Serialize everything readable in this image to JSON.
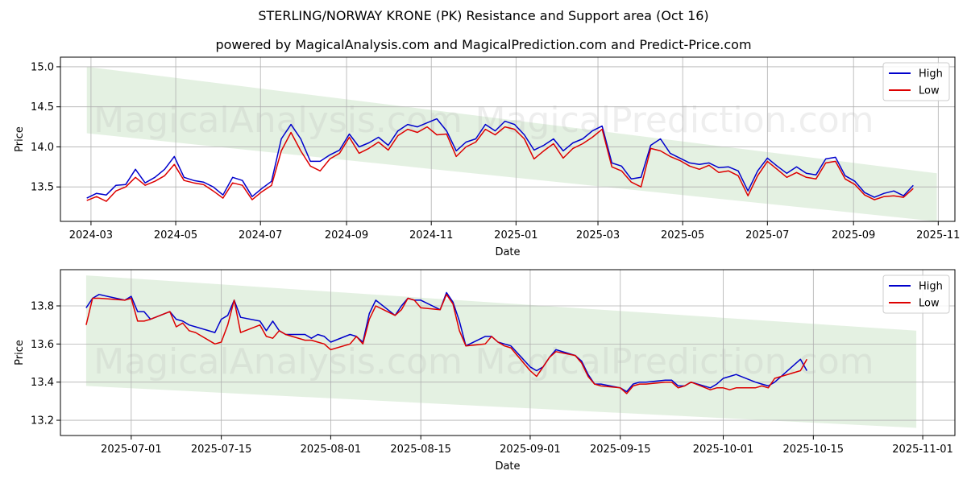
{
  "title": "STERLING/NORWAY KRONE (PK) Resistance and Support area (Oct 16)",
  "subtitle": "powered by MagicalAnalysis.com and MagicalPrediction.com and Predict-Price.com",
  "watermarks": [
    "MagicalAnalysis.com",
    "MagicalPrediction.com"
  ],
  "colors": {
    "high": "#0000cc",
    "low": "#dd0000",
    "band": "#d6ead2",
    "grid": "#b0b0b0"
  },
  "chart_data": [
    {
      "type": "line",
      "xlabel": "Date",
      "ylabel": "Price",
      "grid": true,
      "legend_position": "top-right",
      "x_ticks": [
        "2024-03",
        "2024-05",
        "2024-07",
        "2024-09",
        "2024-11",
        "2025-01",
        "2025-03",
        "2025-05",
        "2025-07",
        "2025-09",
        "2025-11"
      ],
      "y_ticks": [
        "13.5",
        "14.0",
        "14.5",
        "15.0"
      ],
      "xlim": [
        "2024-02-08",
        "2025-11-13"
      ],
      "ylim": [
        13.07,
        15.12
      ],
      "band": {
        "x": [
          "2024-02-27",
          "2025-10-31"
        ],
        "upper": [
          15.0,
          13.67
        ],
        "lower": [
          14.17,
          13.07
        ]
      },
      "series": [
        {
          "name": "High",
          "x": [
            "2024-02-27",
            "2024-03-05",
            "2024-03-12",
            "2024-03-19",
            "2024-03-26",
            "2024-04-02",
            "2024-04-09",
            "2024-04-16",
            "2024-04-23",
            "2024-04-30",
            "2024-05-07",
            "2024-05-14",
            "2024-05-21",
            "2024-05-28",
            "2024-06-04",
            "2024-06-11",
            "2024-06-18",
            "2024-06-25",
            "2024-07-02",
            "2024-07-09",
            "2024-07-16",
            "2024-07-23",
            "2024-07-30",
            "2024-08-06",
            "2024-08-13",
            "2024-08-20",
            "2024-08-27",
            "2024-09-03",
            "2024-09-10",
            "2024-09-17",
            "2024-09-24",
            "2024-10-01",
            "2024-10-08",
            "2024-10-15",
            "2024-10-22",
            "2024-10-29",
            "2024-11-05",
            "2024-11-12",
            "2024-11-19",
            "2024-11-26",
            "2024-12-03",
            "2024-12-10",
            "2024-12-17",
            "2024-12-24",
            "2024-12-31",
            "2025-01-07",
            "2025-01-14",
            "2025-01-21",
            "2025-01-28",
            "2025-02-04",
            "2025-02-11",
            "2025-02-18",
            "2025-02-25",
            "2025-03-04",
            "2025-03-11",
            "2025-03-18",
            "2025-03-25",
            "2025-04-01",
            "2025-04-08",
            "2025-04-15",
            "2025-04-22",
            "2025-04-29",
            "2025-05-06",
            "2025-05-13",
            "2025-05-20",
            "2025-05-27",
            "2025-06-03",
            "2025-06-10",
            "2025-06-17",
            "2025-06-24",
            "2025-07-01",
            "2025-07-08",
            "2025-07-15",
            "2025-07-22",
            "2025-07-29",
            "2025-08-05",
            "2025-08-12",
            "2025-08-19",
            "2025-08-26",
            "2025-09-02",
            "2025-09-09",
            "2025-09-16",
            "2025-09-23",
            "2025-09-30",
            "2025-10-07",
            "2025-10-14"
          ],
          "values": [
            13.36,
            13.42,
            13.4,
            13.52,
            13.53,
            13.72,
            13.55,
            13.62,
            13.72,
            13.88,
            13.62,
            13.58,
            13.56,
            13.5,
            13.4,
            13.62,
            13.58,
            13.38,
            13.48,
            13.57,
            14.1,
            14.28,
            14.1,
            13.82,
            13.82,
            13.9,
            13.96,
            14.16,
            14.0,
            14.05,
            14.12,
            14.02,
            14.2,
            14.28,
            14.25,
            14.3,
            14.35,
            14.2,
            13.95,
            14.06,
            14.1,
            14.28,
            14.2,
            14.32,
            14.28,
            14.15,
            13.96,
            14.02,
            14.1,
            13.95,
            14.05,
            14.1,
            14.2,
            14.26,
            13.8,
            13.76,
            13.6,
            13.62,
            14.02,
            14.1,
            13.92,
            13.86,
            13.8,
            13.78,
            13.8,
            13.74,
            13.75,
            13.7,
            13.45,
            13.7,
            13.86,
            13.76,
            13.67,
            13.75,
            13.67,
            13.65,
            13.85,
            13.87,
            13.64,
            13.57,
            13.43,
            13.37,
            13.42,
            13.45,
            13.39,
            13.52
          ]
        },
        {
          "name": "Low",
          "x": [
            "2024-02-27",
            "2024-03-05",
            "2024-03-12",
            "2024-03-19",
            "2024-03-26",
            "2024-04-02",
            "2024-04-09",
            "2024-04-16",
            "2024-04-23",
            "2024-04-30",
            "2024-05-07",
            "2024-05-14",
            "2024-05-21",
            "2024-05-28",
            "2024-06-04",
            "2024-06-11",
            "2024-06-18",
            "2024-06-25",
            "2024-07-02",
            "2024-07-09",
            "2024-07-16",
            "2024-07-23",
            "2024-07-30",
            "2024-08-06",
            "2024-08-13",
            "2024-08-20",
            "2024-08-27",
            "2024-09-03",
            "2024-09-10",
            "2024-09-17",
            "2024-09-24",
            "2024-10-01",
            "2024-10-08",
            "2024-10-15",
            "2024-10-22",
            "2024-10-29",
            "2024-11-05",
            "2024-11-12",
            "2024-11-19",
            "2024-11-26",
            "2024-12-03",
            "2024-12-10",
            "2024-12-17",
            "2024-12-24",
            "2024-12-31",
            "2025-01-07",
            "2025-01-14",
            "2025-01-21",
            "2025-01-28",
            "2025-02-04",
            "2025-02-11",
            "2025-02-18",
            "2025-02-25",
            "2025-03-04",
            "2025-03-11",
            "2025-03-18",
            "2025-03-25",
            "2025-04-01",
            "2025-04-08",
            "2025-04-15",
            "2025-04-22",
            "2025-04-29",
            "2025-05-06",
            "2025-05-13",
            "2025-05-20",
            "2025-05-27",
            "2025-06-03",
            "2025-06-10",
            "2025-06-17",
            "2025-06-24",
            "2025-07-01",
            "2025-07-08",
            "2025-07-15",
            "2025-07-22",
            "2025-07-29",
            "2025-08-05",
            "2025-08-12",
            "2025-08-19",
            "2025-08-26",
            "2025-09-02",
            "2025-09-09",
            "2025-09-16",
            "2025-09-23",
            "2025-09-30",
            "2025-10-07",
            "2025-10-14"
          ],
          "values": [
            13.33,
            13.38,
            13.32,
            13.45,
            13.5,
            13.62,
            13.52,
            13.57,
            13.64,
            13.78,
            13.58,
            13.55,
            13.53,
            13.45,
            13.36,
            13.55,
            13.52,
            13.34,
            13.44,
            13.52,
            13.95,
            14.18,
            13.95,
            13.76,
            13.7,
            13.85,
            13.92,
            14.12,
            13.92,
            13.98,
            14.06,
            13.96,
            14.14,
            14.22,
            14.18,
            14.25,
            14.15,
            14.16,
            13.88,
            14.0,
            14.06,
            14.22,
            14.15,
            14.25,
            14.22,
            14.1,
            13.85,
            13.95,
            14.04,
            13.86,
            13.98,
            14.04,
            14.12,
            14.22,
            13.75,
            13.7,
            13.56,
            13.5,
            13.98,
            13.95,
            13.88,
            13.83,
            13.76,
            13.72,
            13.77,
            13.68,
            13.7,
            13.64,
            13.39,
            13.64,
            13.82,
            13.72,
            13.62,
            13.68,
            13.62,
            13.6,
            13.8,
            13.82,
            13.6,
            13.53,
            13.4,
            13.34,
            13.38,
            13.39,
            13.37,
            13.48
          ]
        }
      ]
    },
    {
      "type": "line",
      "xlabel": "Date",
      "ylabel": "Price",
      "grid": true,
      "legend_position": "top-right",
      "x_ticks": [
        "2025-07-01",
        "2025-07-15",
        "2025-08-01",
        "2025-08-15",
        "2025-09-01",
        "2025-09-15",
        "2025-10-01",
        "2025-10-15",
        "2025-11-01"
      ],
      "y_ticks": [
        "13.2",
        "13.4",
        "13.6",
        "13.8"
      ],
      "xlim": [
        "2025-06-20",
        "2025-11-06"
      ],
      "ylim": [
        13.12,
        13.99
      ],
      "band": {
        "x": [
          "2025-06-24",
          "2025-10-31"
        ],
        "upper": [
          13.96,
          13.67
        ],
        "lower": [
          13.38,
          13.16
        ]
      },
      "series": [
        {
          "name": "High",
          "x": [
            "2025-06-24",
            "2025-06-25",
            "2025-06-26",
            "2025-06-30",
            "2025-07-01",
            "2025-07-02",
            "2025-07-03",
            "2025-07-04",
            "2025-07-07",
            "2025-07-08",
            "2025-07-09",
            "2025-07-10",
            "2025-07-11",
            "2025-07-14",
            "2025-07-15",
            "2025-07-16",
            "2025-07-17",
            "2025-07-18",
            "2025-07-21",
            "2025-07-22",
            "2025-07-23",
            "2025-07-24",
            "2025-07-25",
            "2025-07-28",
            "2025-07-29",
            "2025-07-30",
            "2025-07-31",
            "2025-08-01",
            "2025-08-04",
            "2025-08-05",
            "2025-08-06",
            "2025-08-07",
            "2025-08-08",
            "2025-08-11",
            "2025-08-12",
            "2025-08-13",
            "2025-08-14",
            "2025-08-15",
            "2025-08-18",
            "2025-08-19",
            "2025-08-20",
            "2025-08-21",
            "2025-08-22",
            "2025-08-25",
            "2025-08-26",
            "2025-08-27",
            "2025-08-28",
            "2025-08-29",
            "2025-09-01",
            "2025-09-02",
            "2025-09-03",
            "2025-09-04",
            "2025-09-05",
            "2025-09-08",
            "2025-09-09",
            "2025-09-10",
            "2025-09-11",
            "2025-09-12",
            "2025-09-15",
            "2025-09-16",
            "2025-09-17",
            "2025-09-18",
            "2025-09-19",
            "2025-09-22",
            "2025-09-23",
            "2025-09-24",
            "2025-09-25",
            "2025-09-26",
            "2025-09-29",
            "2025-09-30",
            "2025-10-01",
            "2025-10-02",
            "2025-10-03",
            "2025-10-06",
            "2025-10-07",
            "2025-10-08",
            "2025-10-09",
            "2025-10-13",
            "2025-10-14"
          ],
          "values": [
            13.79,
            13.84,
            13.86,
            13.83,
            13.85,
            13.77,
            13.77,
            13.73,
            13.77,
            13.73,
            13.72,
            13.7,
            13.69,
            13.66,
            13.73,
            13.75,
            13.83,
            13.74,
            13.72,
            13.67,
            13.72,
            13.67,
            13.65,
            13.65,
            13.63,
            13.65,
            13.64,
            13.61,
            13.65,
            13.64,
            13.61,
            13.76,
            13.83,
            13.75,
            13.8,
            13.84,
            13.83,
            13.83,
            13.78,
            13.87,
            13.82,
            13.72,
            13.59,
            13.64,
            13.64,
            13.61,
            13.6,
            13.59,
            13.48,
            13.46,
            13.48,
            13.53,
            13.57,
            13.54,
            13.51,
            13.44,
            13.39,
            13.39,
            13.37,
            13.35,
            13.39,
            13.4,
            13.4,
            13.41,
            13.41,
            13.38,
            13.38,
            13.4,
            13.37,
            13.39,
            13.42,
            13.43,
            13.44,
            13.4,
            13.39,
            13.38,
            13.4,
            13.52,
            13.46
          ]
        },
        {
          "name": "Low",
          "x": [
            "2025-06-24",
            "2025-06-25",
            "2025-06-26",
            "2025-06-30",
            "2025-07-01",
            "2025-07-02",
            "2025-07-03",
            "2025-07-04",
            "2025-07-07",
            "2025-07-08",
            "2025-07-09",
            "2025-07-10",
            "2025-07-11",
            "2025-07-14",
            "2025-07-15",
            "2025-07-16",
            "2025-07-17",
            "2025-07-18",
            "2025-07-21",
            "2025-07-22",
            "2025-07-23",
            "2025-07-24",
            "2025-07-25",
            "2025-07-28",
            "2025-07-29",
            "2025-07-30",
            "2025-07-31",
            "2025-08-01",
            "2025-08-04",
            "2025-08-05",
            "2025-08-06",
            "2025-08-07",
            "2025-08-08",
            "2025-08-11",
            "2025-08-12",
            "2025-08-13",
            "2025-08-14",
            "2025-08-15",
            "2025-08-18",
            "2025-08-19",
            "2025-08-20",
            "2025-08-21",
            "2025-08-22",
            "2025-08-25",
            "2025-08-26",
            "2025-08-27",
            "2025-08-28",
            "2025-08-29",
            "2025-09-01",
            "2025-09-02",
            "2025-09-03",
            "2025-09-04",
            "2025-09-05",
            "2025-09-08",
            "2025-09-09",
            "2025-09-10",
            "2025-09-11",
            "2025-09-12",
            "2025-09-15",
            "2025-09-16",
            "2025-09-17",
            "2025-09-18",
            "2025-09-19",
            "2025-09-22",
            "2025-09-23",
            "2025-09-24",
            "2025-09-25",
            "2025-09-26",
            "2025-09-29",
            "2025-09-30",
            "2025-10-01",
            "2025-10-02",
            "2025-10-03",
            "2025-10-06",
            "2025-10-07",
            "2025-10-08",
            "2025-10-09",
            "2025-10-13",
            "2025-10-14"
          ],
          "values": [
            13.7,
            13.84,
            13.84,
            13.83,
            13.84,
            13.72,
            13.72,
            13.73,
            13.77,
            13.69,
            13.71,
            13.67,
            13.66,
            13.6,
            13.61,
            13.7,
            13.83,
            13.66,
            13.7,
            13.64,
            13.63,
            13.67,
            13.65,
            13.62,
            13.62,
            13.61,
            13.6,
            13.57,
            13.6,
            13.64,
            13.6,
            13.73,
            13.8,
            13.75,
            13.78,
            13.84,
            13.83,
            13.79,
            13.78,
            13.86,
            13.81,
            13.67,
            13.59,
            13.6,
            13.64,
            13.61,
            13.59,
            13.58,
            13.46,
            13.43,
            13.48,
            13.53,
            13.56,
            13.54,
            13.5,
            13.43,
            13.39,
            13.38,
            13.37,
            13.34,
            13.38,
            13.39,
            13.39,
            13.4,
            13.4,
            13.37,
            13.38,
            13.4,
            13.36,
            13.37,
            13.37,
            13.36,
            13.37,
            13.37,
            13.38,
            13.37,
            13.42,
            13.46,
            13.52
          ]
        }
      ]
    }
  ]
}
